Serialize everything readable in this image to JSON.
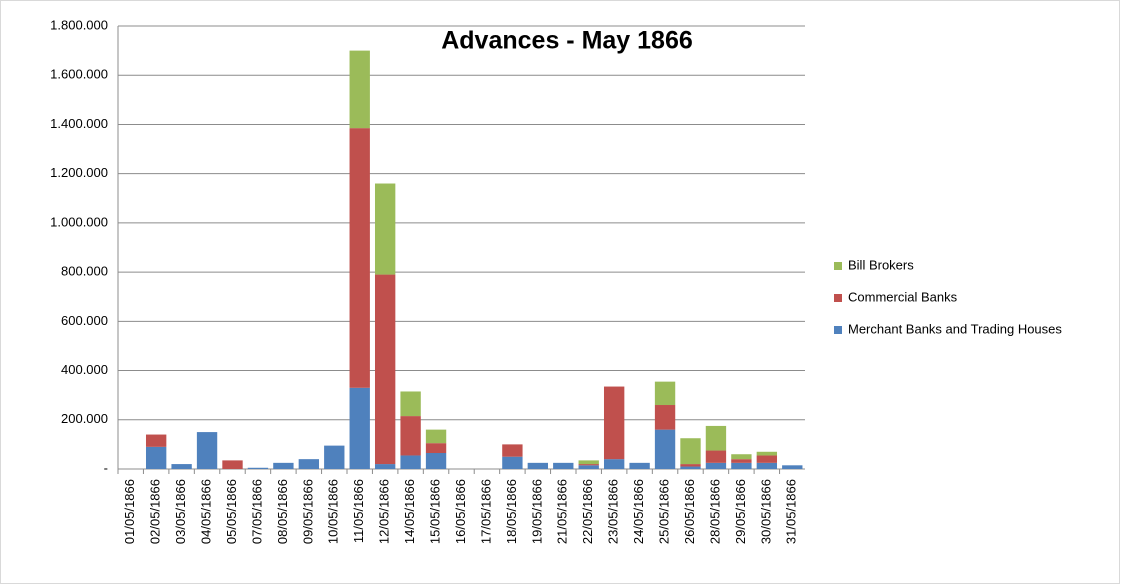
{
  "chart_data": {
    "type": "stacked_bar",
    "title": "Advances - May 1866",
    "categories": [
      "01/05/1866",
      "02/05/1866",
      "03/05/1866",
      "04/05/1866",
      "05/05/1866",
      "07/05/1866",
      "08/05/1866",
      "09/05/1866",
      "10/05/1866",
      "11/05/1866",
      "12/05/1866",
      "14/05/1866",
      "15/05/1866",
      "16/05/1866",
      "17/05/1866",
      "18/05/1866",
      "19/05/1866",
      "21/05/1866",
      "22/05/1866",
      "23/05/1866",
      "24/05/1866",
      "25/05/1866",
      "26/05/1866",
      "28/05/1866",
      "29/05/1866",
      "30/05/1866",
      "31/05/1866"
    ],
    "series": [
      {
        "name": "Merchant Banks and Trading Houses",
        "color": "#4f81bd",
        "values": [
          0,
          90000,
          20000,
          150000,
          0,
          5000,
          25000,
          40000,
          95000,
          330000,
          20000,
          55000,
          65000,
          0,
          0,
          50000,
          25000,
          25000,
          15000,
          40000,
          25000,
          160000,
          10000,
          25000,
          25000,
          25000,
          15000
        ]
      },
      {
        "name": "Commercial Banks",
        "color": "#c0504d",
        "values": [
          0,
          50000,
          0,
          0,
          35000,
          0,
          0,
          0,
          0,
          1055000,
          770000,
          160000,
          40000,
          0,
          0,
          50000,
          0,
          0,
          5000,
          295000,
          0,
          100000,
          10000,
          50000,
          15000,
          30000,
          0
        ]
      },
      {
        "name": "Bill Brokers",
        "color": "#9bbb59",
        "values": [
          0,
          0,
          0,
          0,
          0,
          0,
          0,
          0,
          0,
          315000,
          370000,
          100000,
          55000,
          0,
          0,
          0,
          0,
          0,
          15000,
          0,
          0,
          95000,
          105000,
          100000,
          20000,
          15000,
          0
        ]
      }
    ],
    "ylim": [
      0,
      1800000
    ],
    "yticks": [
      {
        "value": 0,
        "label": "-"
      },
      {
        "value": 200000,
        "label": "200.000"
      },
      {
        "value": 400000,
        "label": "400.000"
      },
      {
        "value": 600000,
        "label": "600.000"
      },
      {
        "value": 800000,
        "label": "800.000"
      },
      {
        "value": 1000000,
        "label": "1.000.000"
      },
      {
        "value": 1200000,
        "label": "1.200.000"
      },
      {
        "value": 1400000,
        "label": "1.400.000"
      },
      {
        "value": 1600000,
        "label": "1.600.000"
      },
      {
        "value": 1800000,
        "label": "1.800.000"
      }
    ],
    "grid": true,
    "legend": "right"
  }
}
